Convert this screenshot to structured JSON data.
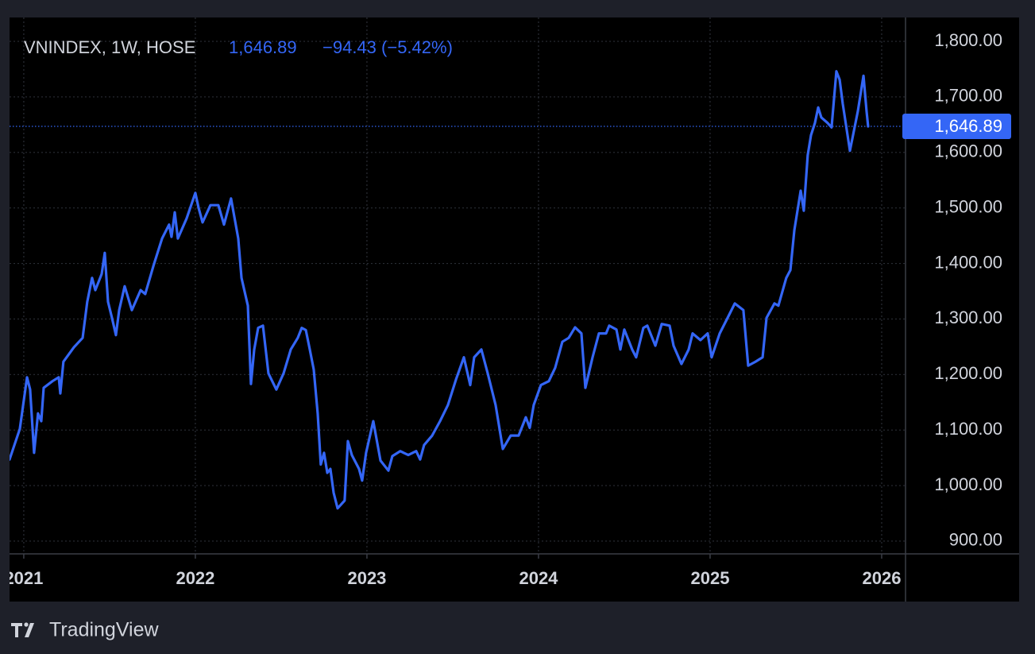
{
  "chart_data": {
    "type": "line",
    "symbol": "VNINDEX, 1W, HOSE",
    "price": {
      "value": 1646.89,
      "label": "1,646.89"
    },
    "change": "−94.43 (−5.42%)",
    "brand": "TradingView",
    "xlim": [
      2020.917,
      2026.139
    ],
    "xticks": [
      2021,
      2022,
      2023,
      2024,
      2025,
      2026
    ],
    "ylim": [
      877,
      1843
    ],
    "yticks": [
      {
        "value": 900,
        "label": "900.00"
      },
      {
        "value": 1000,
        "label": "1,000.00"
      },
      {
        "value": 1100,
        "label": "1,100.00"
      },
      {
        "value": 1200,
        "label": "1,200.00"
      },
      {
        "value": 1300,
        "label": "1,300.00"
      },
      {
        "value": 1400,
        "label": "1,400.00"
      },
      {
        "value": 1500,
        "label": "1,500.00"
      },
      {
        "value": 1600,
        "label": "1,600.00"
      },
      {
        "value": 1700,
        "label": "1,700.00"
      },
      {
        "value": 1800,
        "label": "1,800.00"
      }
    ],
    "grid": true,
    "series": [
      {
        "name": "VNINDEX",
        "color": "#3466f6",
        "x": [
          2020.917,
          2020.977,
          2021.019,
          2021.037,
          2021.06,
          2021.083,
          2021.102,
          2021.116,
          2021.167,
          2021.204,
          2021.213,
          2021.231,
          2021.292,
          2021.343,
          2021.37,
          2021.398,
          2021.417,
          2021.454,
          2021.472,
          2021.491,
          2021.514,
          2021.537,
          2021.556,
          2021.588,
          2021.63,
          2021.681,
          2021.708,
          2021.755,
          2021.806,
          2021.847,
          2021.861,
          2021.88,
          2021.898,
          2021.949,
          2022.0,
          2022.019,
          2022.042,
          2022.088,
          2022.134,
          2022.167,
          2022.208,
          2022.25,
          2022.269,
          2022.306,
          2022.324,
          2022.343,
          2022.366,
          2022.394,
          2022.426,
          2022.472,
          2022.514,
          2022.556,
          2022.597,
          2022.62,
          2022.644,
          2022.667,
          2022.69,
          2022.713,
          2022.731,
          2022.75,
          2022.769,
          2022.787,
          2022.806,
          2022.829,
          2022.87,
          2022.889,
          2022.912,
          2022.954,
          2022.972,
          2022.995,
          2023.037,
          2023.079,
          2023.125,
          2023.148,
          2023.194,
          2023.241,
          2023.287,
          2023.31,
          2023.333,
          2023.38,
          2023.426,
          2023.472,
          2023.519,
          2023.565,
          2023.602,
          2023.625,
          2023.667,
          2023.704,
          2023.75,
          2023.792,
          2023.838,
          2023.884,
          2023.926,
          2023.949,
          2023.972,
          2024.014,
          2024.06,
          2024.097,
          2024.139,
          2024.176,
          2024.213,
          2024.25,
          2024.273,
          2024.315,
          2024.352,
          2024.394,
          2024.412,
          2024.454,
          2024.477,
          2024.5,
          2024.546,
          2024.569,
          2024.611,
          2024.634,
          2024.681,
          2024.718,
          2024.764,
          2024.787,
          2024.833,
          2024.875,
          2024.898,
          2024.944,
          2024.986,
          2025.009,
          2025.056,
          2025.102,
          2025.144,
          2025.194,
          2025.222,
          2025.264,
          2025.306,
          2025.329,
          2025.375,
          2025.398,
          2025.444,
          2025.468,
          2025.491,
          2025.528,
          2025.546,
          2025.569,
          2025.588,
          2025.611,
          2025.63,
          2025.648,
          2025.685,
          2025.708,
          2025.736,
          2025.755,
          2025.773,
          2025.815,
          2025.861,
          2025.894,
          2025.912,
          2025.921
        ],
        "values": [
          1047,
          1102,
          1195,
          1173,
          1059,
          1130,
          1116,
          1176,
          1188,
          1195,
          1166,
          1223,
          1249,
          1266,
          1331,
          1374,
          1352,
          1381,
          1419,
          1331,
          1302,
          1271,
          1316,
          1359,
          1316,
          1352,
          1345,
          1395,
          1445,
          1470,
          1448,
          1492,
          1445,
          1481,
          1527,
          1500,
          1474,
          1505,
          1505,
          1470,
          1517,
          1445,
          1374,
          1324,
          1183,
          1245,
          1284,
          1288,
          1202,
          1173,
          1202,
          1245,
          1266,
          1284,
          1280,
          1245,
          1209,
          1130,
          1038,
          1059,
          1023,
          1030,
          987,
          959,
          973,
          1080,
          1055,
          1030,
          1009,
          1059,
          1116,
          1045,
          1027,
          1053,
          1062,
          1055,
          1062,
          1047,
          1073,
          1090,
          1116,
          1145,
          1191,
          1231,
          1181,
          1231,
          1245,
          1202,
          1145,
          1066,
          1090,
          1090,
          1123,
          1104,
          1145,
          1181,
          1188,
          1212,
          1259,
          1266,
          1285,
          1274,
          1176,
          1231,
          1274,
          1274,
          1288,
          1281,
          1245,
          1281,
          1245,
          1231,
          1284,
          1288,
          1252,
          1291,
          1288,
          1252,
          1219,
          1245,
          1274,
          1262,
          1274,
          1231,
          1274,
          1302,
          1328,
          1316,
          1216,
          1223,
          1231,
          1302,
          1328,
          1324,
          1374,
          1388,
          1460,
          1531,
          1495,
          1595,
          1631,
          1653,
          1681,
          1663,
          1653,
          1645,
          1746,
          1731,
          1688,
          1603,
          1674,
          1738,
          1674,
          1646.89
        ]
      }
    ]
  }
}
